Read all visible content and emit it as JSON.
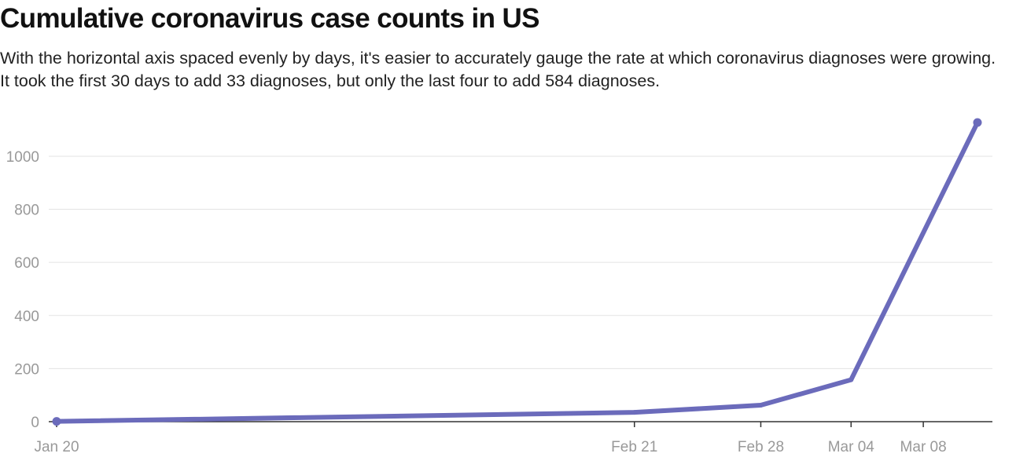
{
  "chart_data": {
    "type": "line",
    "title": "Cumulative coronavirus case counts in US",
    "subtitle": "With the horizontal axis spaced evenly by days, it's easier to accurately gauge the rate at which coronavirus diagnoses were growing. It took the first 30 days to add 33 diagnoses, but only the last four to add 584 diagnoses.",
    "xlabel": "",
    "ylabel": "",
    "x_scale": "date",
    "x_ticks": [
      "2020-01-20",
      "2020-02-21",
      "2020-02-28",
      "2020-03-04",
      "2020-03-08"
    ],
    "x_tick_labels": [
      "Jan 20",
      "Feb 21",
      "Feb 28",
      "Mar 04",
      "Mar 08"
    ],
    "y_ticks": [
      0,
      200,
      400,
      600,
      800,
      1000
    ],
    "ylim": [
      0,
      1130
    ],
    "xlim": [
      "2020-01-20",
      "2020-03-11"
    ],
    "grid": "horizontal",
    "legend": "none",
    "series": [
      {
        "color": "#6b6bbb",
        "points": [
          {
            "x": "2020-01-20",
            "y": 1
          },
          {
            "x": "2020-02-21",
            "y": 35
          },
          {
            "x": "2020-02-28",
            "y": 62
          },
          {
            "x": "2020-03-04",
            "y": 158
          },
          {
            "x": "2020-03-11",
            "y": 1127
          }
        ]
      }
    ],
    "colors": {
      "line": "#6b6bbb",
      "gridline": "#e3e3e3",
      "axis": "#333333",
      "tick_label": "#999999"
    }
  }
}
